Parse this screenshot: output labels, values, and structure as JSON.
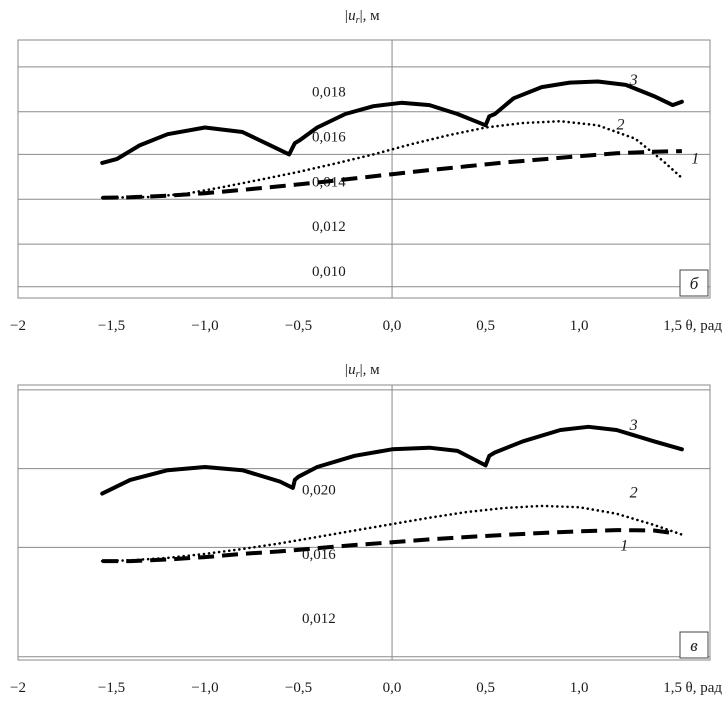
{
  "chart_data": [
    {
      "type": "line",
      "panel_label": "б",
      "ylabel": "|u_r|, м",
      "xlabel": "θ, рад",
      "xlim": [
        -2,
        1.7
      ],
      "ylim": [
        0.0088,
        0.0203
      ],
      "x_ticks": [
        {
          "v": -2,
          "label": "−2"
        },
        {
          "v": -1.5,
          "label": "−1,5"
        },
        {
          "v": -1.0,
          "label": "−1,0"
        },
        {
          "v": -0.5,
          "label": "−0,5"
        },
        {
          "v": 0.0,
          "label": "0,0"
        },
        {
          "v": 0.5,
          "label": "0,5"
        },
        {
          "v": 1.0,
          "label": "1,0"
        },
        {
          "v": 1.5,
          "label": "1,5"
        }
      ],
      "y_ticks": [
        {
          "v": 0.01,
          "label": "0,010"
        },
        {
          "v": 0.012,
          "label": "0,012"
        },
        {
          "v": 0.014,
          "label": "0,014"
        },
        {
          "v": 0.016,
          "label": "0,016"
        },
        {
          "v": 0.018,
          "label": "0,018"
        }
      ],
      "gridlines": [
        0.0093,
        0.0112,
        0.0132,
        0.0152,
        0.0171,
        0.0191
      ],
      "series": [
        {
          "name": "1",
          "style": "dashed",
          "label_pos": [
            1.6,
            0.0148
          ],
          "points": [
            [
              -1.55,
              0.01327
            ],
            [
              -1.4,
              0.01329
            ],
            [
              -1.2,
              0.01336
            ],
            [
              -1.0,
              0.01347
            ],
            [
              -0.8,
              0.01362
            ],
            [
              -0.6,
              0.01378
            ],
            [
              -0.4,
              0.01395
            ],
            [
              -0.2,
              0.01413
            ],
            [
              0.0,
              0.01432
            ],
            [
              0.2,
              0.0145
            ],
            [
              0.4,
              0.01467
            ],
            [
              0.6,
              0.01484
            ],
            [
              0.8,
              0.01498
            ],
            [
              1.0,
              0.01512
            ],
            [
              1.2,
              0.01525
            ],
            [
              1.4,
              0.01532
            ],
            [
              1.55,
              0.01535
            ]
          ]
        },
        {
          "name": "2",
          "style": "dotted",
          "label_pos": [
            1.2,
            0.0163
          ],
          "points": [
            [
              -1.55,
              0.01327
            ],
            [
              -1.3,
              0.0133
            ],
            [
              -1.1,
              0.01345
            ],
            [
              -0.9,
              0.01375
            ],
            [
              -0.7,
              0.01408
            ],
            [
              -0.5,
              0.01442
            ],
            [
              -0.3,
              0.0148
            ],
            [
              -0.1,
              0.0152
            ],
            [
              0.1,
              0.01565
            ],
            [
              0.3,
              0.01605
            ],
            [
              0.5,
              0.0164
            ],
            [
              0.7,
              0.0166
            ],
            [
              0.9,
              0.01668
            ],
            [
              1.1,
              0.0165
            ],
            [
              1.3,
              0.0159
            ],
            [
              1.45,
              0.0149
            ],
            [
              1.55,
              0.01415
            ]
          ]
        },
        {
          "name": "3",
          "style": "solid",
          "label_pos": [
            1.27,
            0.0183
          ],
          "points": [
            [
              -1.55,
              0.01482
            ],
            [
              -1.47,
              0.015
            ],
            [
              -1.35,
              0.0156
            ],
            [
              -1.2,
              0.0161
            ],
            [
              -1.0,
              0.0164
            ],
            [
              -0.8,
              0.0162
            ],
            [
              -0.65,
              0.0156
            ],
            [
              -0.55,
              0.0152
            ],
            [
              -0.52,
              0.0157
            ],
            [
              -0.49,
              0.01585
            ],
            [
              -0.4,
              0.0164
            ],
            [
              -0.25,
              0.017
            ],
            [
              -0.1,
              0.01735
            ],
            [
              0.05,
              0.0175
            ],
            [
              0.2,
              0.0174
            ],
            [
              0.35,
              0.017
            ],
            [
              0.5,
              0.0165
            ],
            [
              0.52,
              0.0169
            ],
            [
              0.55,
              0.017
            ],
            [
              0.65,
              0.0177
            ],
            [
              0.8,
              0.0182
            ],
            [
              0.95,
              0.0184
            ],
            [
              1.1,
              0.01845
            ],
            [
              1.25,
              0.0183
            ],
            [
              1.4,
              0.0178
            ],
            [
              1.5,
              0.0174
            ],
            [
              1.55,
              0.01755
            ]
          ]
        }
      ]
    },
    {
      "type": "line",
      "panel_label": "в",
      "ylabel": "|u_r|, м",
      "xlabel": "θ, рад",
      "xlim": [
        -2,
        1.7
      ],
      "ylim": [
        0.0094,
        0.0265
      ],
      "x_ticks": [
        {
          "v": -2,
          "label": "−2"
        },
        {
          "v": -1.5,
          "label": "−1,5"
        },
        {
          "v": -1.0,
          "label": "−1,0"
        },
        {
          "v": -0.5,
          "label": "−0,5"
        },
        {
          "v": 0.0,
          "label": "0,0"
        },
        {
          "v": 0.5,
          "label": "0,5"
        },
        {
          "v": 1.0,
          "label": "1,0"
        },
        {
          "v": 1.5,
          "label": "1,5"
        }
      ],
      "y_ticks": [
        {
          "v": 0.012,
          "label": "0,012"
        },
        {
          "v": 0.016,
          "label": "0,016"
        },
        {
          "v": 0.02,
          "label": "0,020"
        }
      ],
      "gridlines": [
        0.0096,
        0.0164,
        0.0213,
        0.0262
      ],
      "series": [
        {
          "name": "1",
          "style": "dashed",
          "label_pos": [
            1.22,
            0.0162
          ],
          "points": [
            [
              -1.55,
              0.01555
            ],
            [
              -1.4,
              0.01555
            ],
            [
              -1.2,
              0.01565
            ],
            [
              -1.0,
              0.0158
            ],
            [
              -0.8,
              0.016
            ],
            [
              -0.6,
              0.01615
            ],
            [
              -0.4,
              0.01635
            ],
            [
              -0.2,
              0.01655
            ],
            [
              0.0,
              0.01672
            ],
            [
              0.2,
              0.0169
            ],
            [
              0.4,
              0.01705
            ],
            [
              0.6,
              0.01718
            ],
            [
              0.8,
              0.0173
            ],
            [
              1.0,
              0.0174
            ],
            [
              1.2,
              0.01748
            ],
            [
              1.4,
              0.01745
            ],
            [
              1.5,
              0.0173
            ]
          ]
        },
        {
          "name": "2",
          "style": "dotted",
          "label_pos": [
            1.27,
            0.0195
          ],
          "points": [
            [
              -1.55,
              0.01555
            ],
            [
              -1.4,
              0.0156
            ],
            [
              -1.2,
              0.01575
            ],
            [
              -1.0,
              0.016
            ],
            [
              -0.8,
              0.0163
            ],
            [
              -0.6,
              0.01665
            ],
            [
              -0.4,
              0.01705
            ],
            [
              -0.2,
              0.01745
            ],
            [
              0.0,
              0.01785
            ],
            [
              0.2,
              0.01825
            ],
            [
              0.4,
              0.0186
            ],
            [
              0.6,
              0.01885
            ],
            [
              0.8,
              0.01898
            ],
            [
              1.0,
              0.0189
            ],
            [
              1.2,
              0.0185
            ],
            [
              1.4,
              0.0178
            ],
            [
              1.55,
              0.0172
            ]
          ]
        },
        {
          "name": "3",
          "style": "solid",
          "label_pos": [
            1.27,
            0.0237
          ],
          "points": [
            [
              -1.55,
              0.01975
            ],
            [
              -1.4,
              0.0206
            ],
            [
              -1.2,
              0.0212
            ],
            [
              -1.0,
              0.0214
            ],
            [
              -0.8,
              0.0212
            ],
            [
              -0.6,
              0.0205
            ],
            [
              -0.53,
              0.0201
            ],
            [
              -0.52,
              0.0206
            ],
            [
              -0.5,
              0.0208
            ],
            [
              -0.4,
              0.0214
            ],
            [
              -0.2,
              0.0221
            ],
            [
              0.0,
              0.0225
            ],
            [
              0.2,
              0.0226
            ],
            [
              0.35,
              0.0224
            ],
            [
              0.5,
              0.0215
            ],
            [
              0.52,
              0.0221
            ],
            [
              0.55,
              0.0223
            ],
            [
              0.7,
              0.023
            ],
            [
              0.9,
              0.0237
            ],
            [
              1.05,
              0.0239
            ],
            [
              1.2,
              0.0237
            ],
            [
              1.4,
              0.023
            ],
            [
              1.55,
              0.0225
            ]
          ]
        }
      ]
    }
  ]
}
